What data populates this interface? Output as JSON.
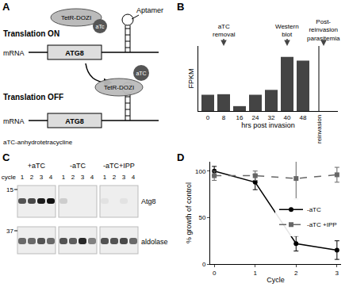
{
  "panel_labels": [
    "A",
    "B",
    "C",
    "D"
  ],
  "diagram": {
    "on_label": "Translation ON",
    "off_label": "Translation OFF",
    "protein": "TetR-DOZI",
    "ligand": "aTc",
    "ligand_released": "aTC",
    "aptamer": "Aptamer",
    "mrna": "mRNA",
    "gene": "ATG8",
    "footnote": "aTC-anhydrotetracycline"
  },
  "blot": {
    "lane_label": "cycle",
    "groups": [
      "+aTC",
      "-aTC",
      "-aTC+IPP"
    ],
    "lanes": [
      1,
      2,
      3,
      4
    ],
    "rows": [
      {
        "label": "Atg8",
        "marker": 15,
        "intensity": [
          [
            0.7,
            0.75,
            0.95,
            1.0
          ],
          [
            0.15,
            0,
            0,
            0
          ],
          [
            0.05,
            0,
            0.05,
            0
          ]
        ]
      },
      {
        "label": "aldolase",
        "marker": 37,
        "intensity": [
          [
            0.6,
            0.6,
            0.7,
            0.6
          ],
          [
            0.7,
            0.65,
            0.9,
            0.5
          ],
          [
            0.7,
            0.7,
            0.75,
            0.6
          ]
        ]
      }
    ]
  },
  "chart_data": [
    {
      "type": "bar",
      "categories": [
        "0",
        "8",
        "16",
        "24",
        "32",
        "40",
        "48",
        "reinvasion"
      ],
      "values": [
        150,
        155,
        45,
        150,
        195,
        500,
        465,
        null
      ],
      "color": "#444444",
      "xlabel": "hrs post invasion",
      "ylabel": "FPKM",
      "ylim": [
        0,
        600
      ],
      "tick_labels": "x",
      "annotations": [
        {
          "text": "aTC removal",
          "category": "8"
        },
        {
          "text": "Western blot",
          "category": "40"
        },
        {
          "text": "Post- reinvasion parasitemia",
          "category": "reinvasion"
        }
      ]
    },
    {
      "type": "line",
      "x": [
        0,
        1,
        2,
        3
      ],
      "series": [
        {
          "name": "-aTC",
          "color": "#000000",
          "values": [
            100,
            88,
            22,
            15
          ],
          "error": [
            5,
            8,
            8,
            10
          ],
          "marker": "circle",
          "line_style": "solid"
        },
        {
          "name": "-aTC +IPP",
          "color": "#666666",
          "values": [
            95,
            95,
            92,
            96
          ],
          "error": [
            5,
            5,
            22,
            8
          ],
          "marker": "square",
          "line_style": "dash"
        }
      ],
      "xlabel": "Cycle",
      "ylabel": "% growth of control",
      "xlim": [
        -0.1,
        3.1
      ],
      "xticks": [
        0,
        1,
        2,
        3
      ],
      "ylim": [
        0,
        110
      ],
      "yticks": [
        0,
        50,
        100
      ],
      "legend": "right"
    }
  ]
}
